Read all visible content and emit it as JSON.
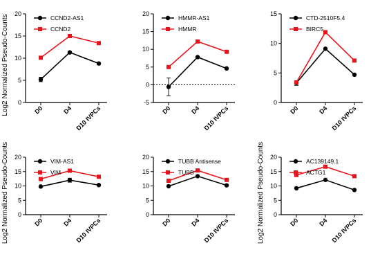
{
  "colors": {
    "series_a": "#000000",
    "series_b": "#e8141b"
  },
  "chart_data": [
    {
      "type": "line",
      "ylabel": "Log2 Normalized Pseudo-Counts",
      "categories": [
        "D0",
        "D4",
        "D10 IVPCs"
      ],
      "yticks": [
        "0",
        "5",
        "10",
        "15",
        "20"
      ],
      "ylim": [
        0,
        20
      ],
      "zero_line": false,
      "series": [
        {
          "name": "CCND2-AS1",
          "values": [
            5.2,
            11.3,
            8.8
          ],
          "err": [
            0.5,
            0.2,
            0.2
          ],
          "color": "#000000",
          "marker": "circle"
        },
        {
          "name": "CCND2",
          "values": [
            10.1,
            15.0,
            13.4
          ],
          "err": [
            0,
            0,
            0
          ],
          "color": "#e8141b",
          "marker": "square"
        }
      ]
    },
    {
      "type": "line",
      "ylabel": "",
      "categories": [
        "D0",
        "D4",
        "D10 IVPCs"
      ],
      "yticks": [
        "-5",
        "0",
        "5",
        "10",
        "15",
        "20"
      ],
      "ylim": [
        -5,
        20
      ],
      "zero_line": true,
      "series": [
        {
          "name": "HMMR-AS1",
          "values": [
            -0.6,
            7.8,
            4.6
          ],
          "err": [
            2.5,
            0.2,
            0.2
          ],
          "color": "#000000",
          "marker": "circle"
        },
        {
          "name": "HMMR",
          "values": [
            5.0,
            12.2,
            9.3
          ],
          "err": [
            0,
            0,
            0
          ],
          "color": "#e8141b",
          "marker": "square"
        }
      ]
    },
    {
      "type": "line",
      "ylabel": "",
      "categories": [
        "D0",
        "D4",
        "D10 IVPCs"
      ],
      "yticks": [
        "0",
        "5",
        "10",
        "15"
      ],
      "ylim": [
        0,
        15
      ],
      "zero_line": false,
      "series": [
        {
          "name": "CTD-2510F5.4",
          "values": [
            3.3,
            9.1,
            4.7
          ],
          "err": [
            0.4,
            0.1,
            0.1
          ],
          "color": "#000000",
          "marker": "circle"
        },
        {
          "name": "BIRC5",
          "values": [
            3.4,
            11.9,
            7.1
          ],
          "err": [
            0,
            0,
            0
          ],
          "color": "#e8141b",
          "marker": "square"
        }
      ]
    },
    {
      "type": "line",
      "ylabel": "Log2 Normalized Pseudo-Counts",
      "categories": [
        "D0",
        "D4",
        "D10 IVPCs"
      ],
      "yticks": [
        "0",
        "5",
        "10",
        "15",
        "20"
      ],
      "ylim": [
        0,
        20
      ],
      "zero_line": false,
      "series": [
        {
          "name": "VIM-AS1",
          "values": [
            9.8,
            12.0,
            10.3
          ],
          "err": [
            0.2,
            0.7,
            0.2
          ],
          "color": "#000000",
          "marker": "circle"
        },
        {
          "name": "VIM",
          "values": [
            12.4,
            15.3,
            13.2
          ],
          "err": [
            0,
            0,
            0
          ],
          "color": "#e8141b",
          "marker": "square"
        }
      ]
    },
    {
      "type": "line",
      "ylabel": "",
      "categories": [
        "D0",
        "D4",
        "D10 IVPCs"
      ],
      "yticks": [
        "0",
        "5",
        "10",
        "15",
        "20"
      ],
      "ylim": [
        0,
        20
      ],
      "zero_line": false,
      "series": [
        {
          "name": "TUBB Antisense",
          "values": [
            9.9,
            13.4,
            10.2
          ],
          "err": [
            0.1,
            0.2,
            0.1
          ],
          "color": "#000000",
          "marker": "circle"
        },
        {
          "name": "TUBB",
          "values": [
            11.8,
            15.4,
            12.1
          ],
          "err": [
            0,
            0,
            0
          ],
          "color": "#e8141b",
          "marker": "square"
        }
      ]
    },
    {
      "type": "line",
      "ylabel": "Log2 Normalized Pseudo-Counts",
      "categories": [
        "D0",
        "D4",
        "D10 IVPCs"
      ],
      "yticks": [
        "0",
        "5",
        "10",
        "15",
        "20"
      ],
      "ylim": [
        0,
        20
      ],
      "zero_line": false,
      "series": [
        {
          "name": "AC139149.1",
          "values": [
            9.2,
            12.1,
            8.6
          ],
          "err": [
            0.1,
            0.1,
            0.1
          ],
          "color": "#000000",
          "marker": "circle"
        },
        {
          "name": "ACTG1",
          "values": [
            13.8,
            16.7,
            13.4
          ],
          "err": [
            0,
            0,
            0
          ],
          "color": "#e8141b",
          "marker": "square"
        }
      ]
    }
  ]
}
